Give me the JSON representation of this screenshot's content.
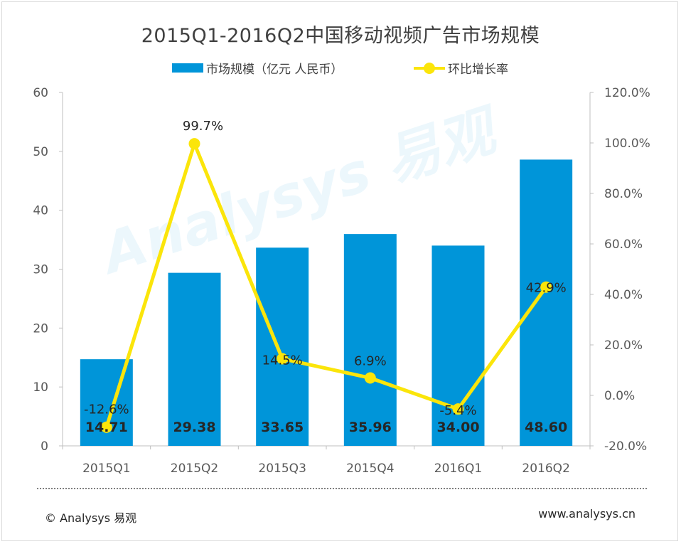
{
  "watermark": "Analysys 易观",
  "footer": {
    "copyright": "© Analysys 易观",
    "url": "www.analysys.cn"
  },
  "colors": {
    "bar": "#0095d9",
    "line": "#fbe50a",
    "axis": "#bfbfbf",
    "text": "#404040"
  },
  "chart_data": {
    "type": "bar",
    "title": "2015Q1-2016Q2中国移动视频广告市场规模",
    "categories": [
      "2015Q1",
      "2015Q2",
      "2015Q3",
      "2015Q4",
      "2016Q1",
      "2016Q2"
    ],
    "series": [
      {
        "name": "市场规模（亿元  人民币）",
        "type": "bar",
        "axis": "left",
        "values": [
          14.71,
          29.38,
          33.65,
          35.96,
          34.0,
          48.6
        ],
        "labels": [
          "14.71",
          "29.38",
          "33.65",
          "35.96",
          "34.00",
          "48.60"
        ]
      },
      {
        "name": "环比增长率",
        "type": "line",
        "axis": "right",
        "values": [
          -12.6,
          99.7,
          14.5,
          6.9,
          -5.4,
          42.9
        ],
        "labels": [
          "-12.6%",
          "99.7%",
          "14.5%",
          "6.9%",
          "-5.4%",
          "42.9%"
        ]
      }
    ],
    "y_left": {
      "min": 0,
      "max": 60,
      "ticks": [
        "0",
        "10",
        "20",
        "30",
        "40",
        "50",
        "60"
      ]
    },
    "y_right": {
      "min": -20,
      "max": 120,
      "ticks": [
        "-20.0%",
        "0.0%",
        "20.0%",
        "40.0%",
        "60.0%",
        "80.0%",
        "100.0%",
        "120.0%"
      ]
    },
    "legend_position": "top",
    "grid": false
  }
}
